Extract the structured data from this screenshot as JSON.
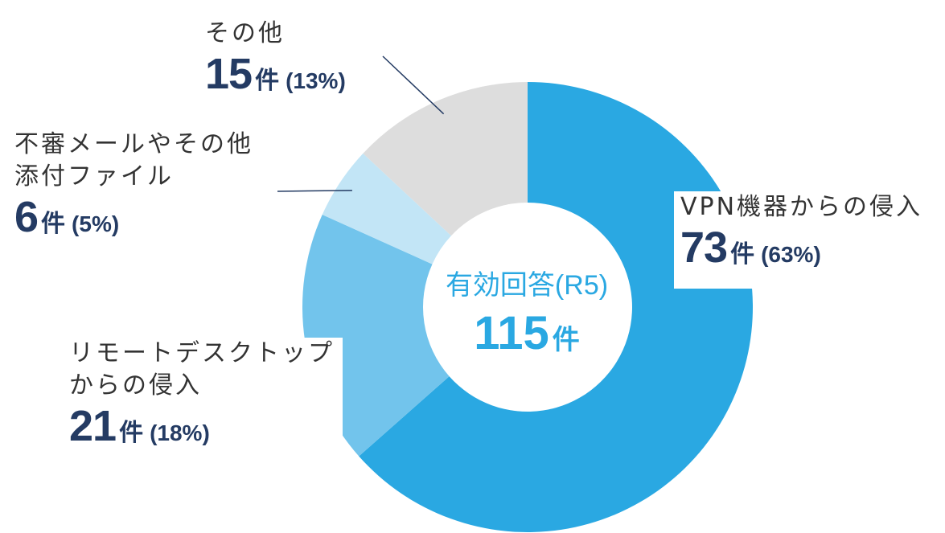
{
  "chart_data": {
    "type": "pie",
    "center": {
      "title": "有効回答(R5)",
      "total": "115",
      "unit": "件"
    },
    "slices": [
      {
        "name": "VPN機器からの侵入",
        "value": 73,
        "unit": "件",
        "percent": "(63%)",
        "color": "#2aa8e2"
      },
      {
        "name": "リモートデスクトップからの侵入",
        "value": 21,
        "unit": "件",
        "percent": "(18%)",
        "color": "#72c4ec"
      },
      {
        "name": "不審メールやその他添付ファイル",
        "value": 6,
        "unit": "件",
        "percent": "(5%)",
        "color": "#c2e5f6"
      },
      {
        "name": "その他",
        "value": 15,
        "unit": "件",
        "percent": "(13%)",
        "color": "#dddddd"
      }
    ],
    "label_lines": {
      "vpn": "VPN機器からの侵入",
      "rdp_1": "リモートデスクトップ",
      "rdp_2": "からの侵入",
      "mail_1": "不審メールやその他",
      "mail_2": "添付ファイル",
      "other": "その他"
    },
    "leader_color": "#243b63"
  }
}
